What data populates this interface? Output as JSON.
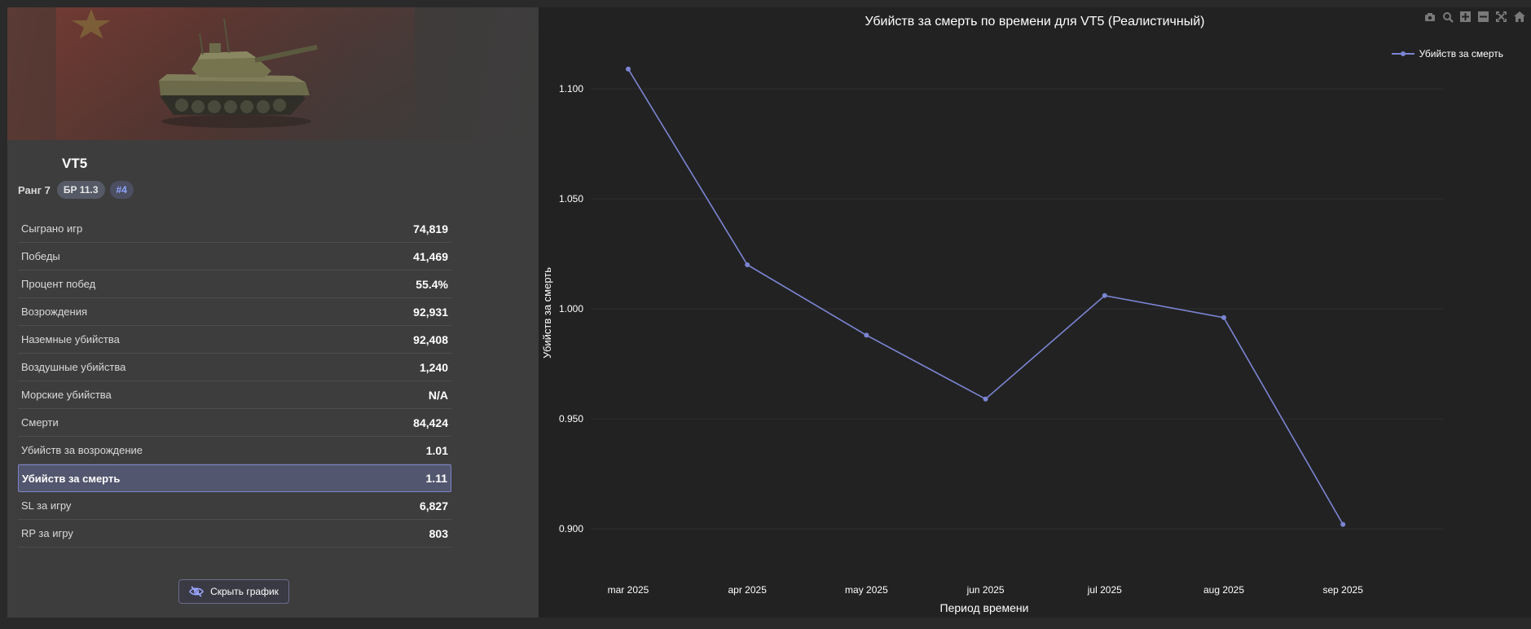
{
  "vehicle": {
    "name": "VT5",
    "rank_label": "Ранг 7",
    "br_label": "БР 11.3",
    "position_label": "#4"
  },
  "stats": [
    {
      "label": "Сыграно игр",
      "value": "74,819",
      "active": false
    },
    {
      "label": "Победы",
      "value": "41,469",
      "active": false
    },
    {
      "label": "Процент побед",
      "value": "55.4%",
      "active": false
    },
    {
      "label": "Возрождения",
      "value": "92,931",
      "active": false
    },
    {
      "label": "Наземные убийства",
      "value": "92,408",
      "active": false
    },
    {
      "label": "Воздушные убийства",
      "value": "1,240",
      "active": false
    },
    {
      "label": "Морские убийства",
      "value": "N/A",
      "active": false
    },
    {
      "label": "Смерти",
      "value": "84,424",
      "active": false
    },
    {
      "label": "Убийств за возрождение",
      "value": "1.01",
      "active": false
    },
    {
      "label": "Убийств за смерть",
      "value": "1.11",
      "active": true
    },
    {
      "label": "SL за игру",
      "value": "6,827",
      "active": false
    },
    {
      "label": "RP за игру",
      "value": "803",
      "active": false
    }
  ],
  "toggle_button": {
    "label": "Скрыть график",
    "icon": "eye-off-icon"
  },
  "modebar": {
    "icons": [
      "camera-icon",
      "zoom-icon",
      "zoom-in-icon",
      "zoom-out-icon",
      "autoscale-icon",
      "home-icon"
    ]
  },
  "colors": {
    "accent": "#7b85d4",
    "active_row": "#52566e",
    "panel": "#3d3d3d",
    "chart_bg": "#222222"
  },
  "chart_data": {
    "type": "line",
    "title": "Убийств за смерть по времени для VT5 (Реалистичный)",
    "xlabel": "Период времени",
    "ylabel": "Убийств за смерть",
    "categories": [
      "mar 2025",
      "apr 2025",
      "may 2025",
      "jun 2025",
      "jul 2025",
      "aug 2025",
      "sep 2025"
    ],
    "series": [
      {
        "name": "Убийств за смерть",
        "values": [
          1.109,
          1.02,
          0.988,
          0.959,
          1.006,
          0.996,
          0.902
        ]
      }
    ],
    "yticks": [
      "0.900",
      "0.950",
      "1.000",
      "1.050",
      "1.100"
    ],
    "ylim": [
      0.9,
      1.1
    ],
    "grid": true,
    "legend": "top-right"
  }
}
